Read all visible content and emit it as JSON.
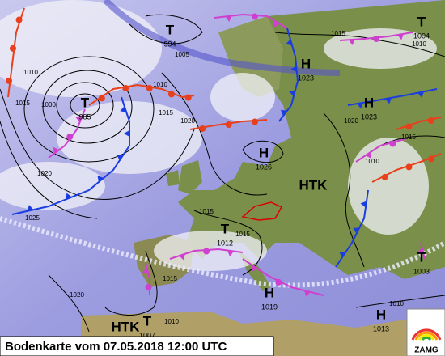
{
  "title": "Bodenkarte vom 07.05.2018 12:00 UTC",
  "logo": "ZAMG",
  "pressure_centers": [
    {
      "symbol": "T",
      "pressure": 994
    },
    {
      "symbol": "T",
      "pressure": 985
    },
    {
      "symbol": "H",
      "pressure": 1023
    },
    {
      "symbol": "T",
      "pressure": 1004
    },
    {
      "symbol": "H",
      "pressure": 1023
    },
    {
      "symbol": "H",
      "pressure": 1026
    },
    {
      "symbol": "T",
      "pressure": 1012
    },
    {
      "symbol": "T",
      "pressure": 1003
    },
    {
      "symbol": "H",
      "pressure": 1019
    },
    {
      "symbol": "H",
      "pressure": 1013
    },
    {
      "symbol": "T",
      "pressure": 1007
    }
  ],
  "labels": [
    "HTK",
    "HTK"
  ],
  "isobar_labels": [
    1015,
    1005,
    1010,
    1000,
    1015,
    1020,
    1025,
    1010,
    1015,
    1020,
    1015,
    1015,
    1015,
    1020,
    1010,
    1010,
    1010,
    1015,
    1020,
    1010
  ]
}
